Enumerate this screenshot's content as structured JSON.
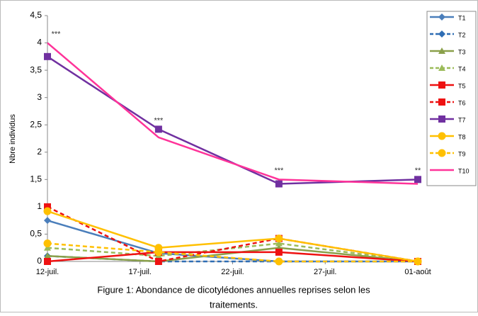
{
  "chart_data": {
    "type": "line",
    "y_label": "Nbre individus",
    "caption": [
      "Figure 1: Abondance de dicotylédones annuelles reprises selon les",
      "traitements."
    ],
    "x": [
      12,
      18,
      24.5,
      32
    ],
    "xlim": [
      12,
      32
    ],
    "xticks": [
      {
        "value": 12,
        "label": "12-juil."
      },
      {
        "value": 17,
        "label": "17-juil."
      },
      {
        "value": 22,
        "label": "22-juil."
      },
      {
        "value": 27,
        "label": "27-juil."
      },
      {
        "value": 32,
        "label": "01-août"
      }
    ],
    "ylim": [
      0,
      4.5
    ],
    "yticks": [
      0,
      {
        "value": 0.5,
        "label": "0,5"
      },
      1,
      {
        "value": 1.5,
        "label": "1,5"
      },
      2,
      {
        "value": 2.5,
        "label": "2,5"
      },
      3,
      {
        "value": 3.5,
        "label": "3,5"
      },
      4,
      {
        "value": 4.5,
        "label": "4,5"
      }
    ],
    "annotations": [
      "***",
      "***",
      "***",
      "**"
    ],
    "series": [
      {
        "name": "T1",
        "color": "#4a7ebb",
        "dash": false,
        "marker": "diamond",
        "values": [
          0.75,
          0.15,
          0,
          0
        ]
      },
      {
        "name": "T2",
        "color": "#2e6db4",
        "dash": true,
        "marker": "diamond",
        "values": [
          0.1,
          0,
          0,
          0
        ]
      },
      {
        "name": "T3",
        "color": "#8aa04a",
        "dash": false,
        "marker": "triangle",
        "values": [
          0.1,
          0,
          0.25,
          0
        ]
      },
      {
        "name": "T4",
        "color": "#9bbb59",
        "dash": true,
        "marker": "triangle",
        "values": [
          0.25,
          0.1,
          0.33,
          0
        ]
      },
      {
        "name": "T5",
        "color": "#ee1111",
        "dash": false,
        "marker": "square",
        "values": [
          0,
          0.17,
          0.17,
          0
        ]
      },
      {
        "name": "T6",
        "color": "#ee1111",
        "dash": true,
        "marker": "square",
        "values": [
          1,
          0,
          0.42,
          0
        ]
      },
      {
        "name": "T7",
        "color": "#7030a0",
        "dash": false,
        "marker": "square",
        "values": [
          3.75,
          2.42,
          1.42,
          1.5
        ]
      },
      {
        "name": "T8",
        "color": "#ffc000",
        "dash": false,
        "marker": "circle",
        "values": [
          0.92,
          0.25,
          0.42,
          0
        ]
      },
      {
        "name": "T9",
        "color": "#ffc000",
        "dash": true,
        "marker": "circle",
        "values": [
          0.33,
          0.17,
          0,
          0
        ]
      },
      {
        "name": "T10",
        "color": "#ff3399",
        "dash": false,
        "marker": "none",
        "values": [
          4,
          2.27,
          1.5,
          1.42
        ]
      }
    ]
  }
}
